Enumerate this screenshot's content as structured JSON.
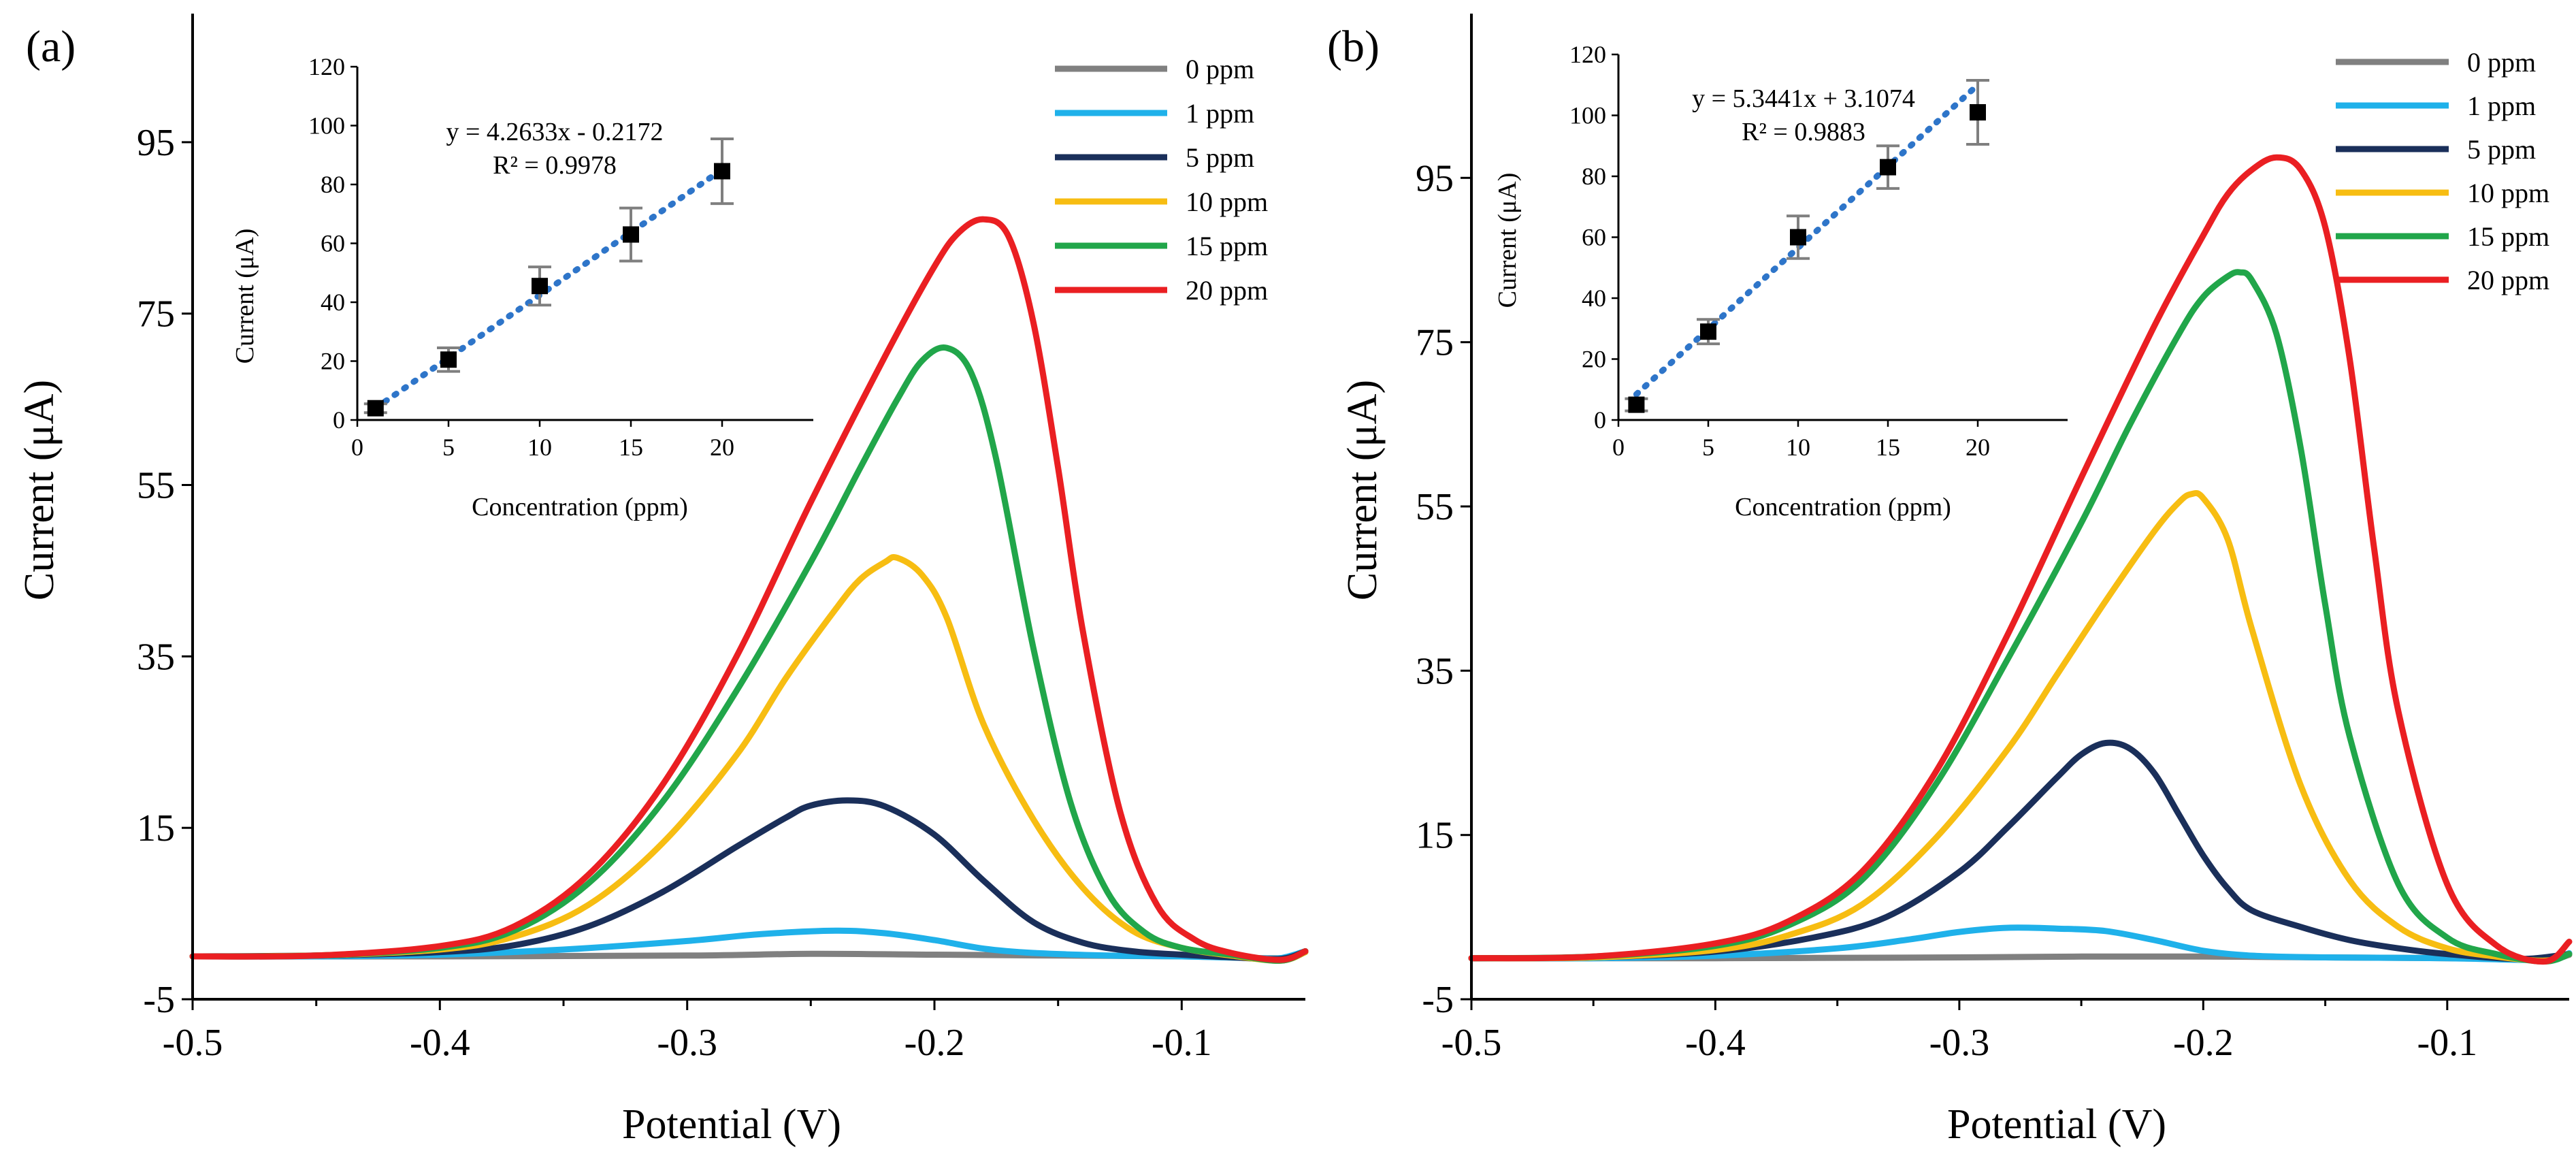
{
  "chart_data": [
    {
      "panel_label": "(a)",
      "type": "line",
      "xlabel": "Potential (V)",
      "ylabel": "Current (μA)",
      "xlim": [
        -0.5,
        -0.05
      ],
      "ylim": [
        -5,
        110
      ],
      "xticks": [
        -0.5,
        -0.4,
        -0.3,
        -0.2,
        -0.1
      ],
      "xtick_labels": [
        "-0.5",
        "-0.4",
        "-0.3",
        "-0.2",
        "-0.1"
      ],
      "yticks": [
        -5,
        15,
        35,
        55,
        75,
        95
      ],
      "ytick_labels": [
        "-5",
        "15",
        "35",
        "55",
        "75",
        "95"
      ],
      "series": [
        {
          "name": "0 ppm",
          "color": "#808080",
          "x": [
            -0.5,
            -0.4,
            -0.3,
            -0.25,
            -0.2,
            -0.15,
            -0.1,
            -0.06,
            -0.05
          ],
          "y": [
            0,
            0,
            0.1,
            0.3,
            0.2,
            0.1,
            0,
            -0.2,
            0.5
          ]
        },
        {
          "name": "1 ppm",
          "color": "#1fb1ea",
          "x": [
            -0.5,
            -0.45,
            -0.4,
            -0.35,
            -0.3,
            -0.27,
            -0.24,
            -0.22,
            -0.2,
            -0.18,
            -0.16,
            -0.13,
            -0.1,
            -0.07,
            -0.06,
            -0.05
          ],
          "y": [
            0,
            0,
            0.2,
            0.8,
            1.8,
            2.6,
            3.0,
            2.7,
            1.9,
            0.9,
            0.4,
            0.1,
            0,
            -0.2,
            -0.2,
            0.6
          ]
        },
        {
          "name": "5 ppm",
          "color": "#1a2f5a",
          "x": [
            -0.5,
            -0.45,
            -0.4,
            -0.37,
            -0.34,
            -0.31,
            -0.28,
            -0.26,
            -0.25,
            -0.235,
            -0.22,
            -0.2,
            -0.18,
            -0.16,
            -0.14,
            -0.12,
            -0.1,
            -0.08,
            -0.06,
            -0.05
          ],
          "y": [
            0,
            0.1,
            0.5,
            1.3,
            3.5,
            7.5,
            12.8,
            16.2,
            17.6,
            18.2,
            17.5,
            14.2,
            8.8,
            4.0,
            1.6,
            0.6,
            0.2,
            -0.1,
            -0.3,
            0.6
          ]
        },
        {
          "name": "10 ppm",
          "color": "#f7bd12",
          "x": [
            -0.5,
            -0.45,
            -0.4,
            -0.37,
            -0.34,
            -0.31,
            -0.28,
            -0.26,
            -0.24,
            -0.23,
            -0.22,
            -0.215,
            -0.205,
            -0.195,
            -0.18,
            -0.16,
            -0.14,
            -0.12,
            -0.1,
            -0.08,
            -0.06,
            -0.05
          ],
          "y": [
            0,
            0.1,
            0.8,
            2.3,
            6.0,
            13.2,
            23.5,
            32.5,
            40.5,
            44.0,
            46.0,
            46.5,
            44.5,
            39.5,
            27.0,
            16.0,
            8.0,
            3.0,
            1.0,
            0.1,
            -0.5,
            0.5
          ]
        },
        {
          "name": "15 ppm",
          "color": "#21a64a",
          "x": [
            -0.5,
            -0.45,
            -0.4,
            -0.37,
            -0.34,
            -0.31,
            -0.28,
            -0.25,
            -0.23,
            -0.215,
            -0.205,
            -0.195,
            -0.185,
            -0.175,
            -0.16,
            -0.145,
            -0.13,
            -0.115,
            -0.1,
            -0.08,
            -0.06,
            -0.05
          ],
          "y": [
            0,
            0.1,
            1.0,
            3.0,
            8.5,
            18.0,
            31.0,
            46.0,
            57.0,
            65.0,
            69.5,
            71.0,
            68.0,
            58.0,
            36.0,
            18.0,
            7.5,
            2.8,
            1.0,
            0.2,
            -0.5,
            0.6
          ]
        },
        {
          "name": "20 ppm",
          "color": "#ea1f22",
          "x": [
            -0.5,
            -0.45,
            -0.4,
            -0.37,
            -0.34,
            -0.31,
            -0.28,
            -0.25,
            -0.22,
            -0.2,
            -0.19,
            -0.18,
            -0.17,
            -0.16,
            -0.15,
            -0.14,
            -0.125,
            -0.11,
            -0.095,
            -0.08,
            -0.06,
            -0.05
          ],
          "y": [
            0,
            0.1,
            1.2,
            3.5,
            9.5,
            20.0,
            35.0,
            53.0,
            70.0,
            80.5,
            84.5,
            86.0,
            84.0,
            74.0,
            57.0,
            38.0,
            17.0,
            6.0,
            2.0,
            0.4,
            -0.4,
            0.6
          ]
        }
      ],
      "inset": {
        "type": "scatter",
        "xlabel": "Concentration (ppm)",
        "ylabel": "Current (μA)",
        "xlim": [
          0,
          25
        ],
        "ylim": [
          0,
          120
        ],
        "xticks": [
          0,
          5,
          10,
          15,
          20
        ],
        "xtick_labels": [
          "0",
          "5",
          "10",
          "15",
          "20"
        ],
        "yticks": [
          0,
          20,
          40,
          60,
          80,
          100,
          120
        ],
        "ytick_labels": [
          "0",
          "20",
          "40",
          "60",
          "80",
          "100",
          "120"
        ],
        "x": [
          1,
          5,
          10,
          15,
          20
        ],
        "y": [
          4.0,
          20.5,
          45.5,
          63.0,
          84.5
        ],
        "error": [
          1.5,
          4.0,
          6.5,
          9.0,
          11.0
        ],
        "equation": "y = 4.2633x - 0.2172",
        "r_squared": "R² = 0.9978",
        "fit": {
          "slope": 4.2633,
          "intercept": -0.2172,
          "x_range": [
            1,
            20
          ]
        }
      }
    },
    {
      "panel_label": "(b)",
      "type": "line",
      "xlabel": "Potential (V)",
      "ylabel": "Current (μA)",
      "xlim": [
        -0.5,
        -0.05
      ],
      "ylim": [
        -5,
        115
      ],
      "xticks": [
        -0.5,
        -0.4,
        -0.3,
        -0.2,
        -0.1
      ],
      "xtick_labels": [
        "-0.5",
        "-0.4",
        "-0.3",
        "-0.2",
        "-0.1"
      ],
      "yticks": [
        -5,
        15,
        35,
        55,
        75,
        95
      ],
      "ytick_labels": [
        "-5",
        "15",
        "35",
        "55",
        "75",
        "95"
      ],
      "series": [
        {
          "name": "0 ppm",
          "color": "#808080",
          "x": [
            -0.5,
            -0.4,
            -0.3,
            -0.25,
            -0.2,
            -0.15,
            -0.1,
            -0.06,
            -0.05
          ],
          "y": [
            0,
            0,
            0.1,
            0.2,
            0.2,
            0.1,
            0,
            -0.1,
            0.4
          ]
        },
        {
          "name": "1 ppm",
          "color": "#1fb1ea",
          "x": [
            -0.5,
            -0.45,
            -0.4,
            -0.35,
            -0.32,
            -0.3,
            -0.28,
            -0.26,
            -0.24,
            -0.22,
            -0.2,
            -0.18,
            -0.15,
            -0.1,
            -0.06,
            -0.05
          ],
          "y": [
            0,
            0,
            0.3,
            1.2,
            2.3,
            3.2,
            3.7,
            3.6,
            3.3,
            2.2,
            0.9,
            0.3,
            0.1,
            0,
            -0.2,
            0.6
          ]
        },
        {
          "name": "5 ppm",
          "color": "#1a2f5a",
          "x": [
            -0.5,
            -0.45,
            -0.4,
            -0.36,
            -0.33,
            -0.3,
            -0.28,
            -0.26,
            -0.25,
            -0.24,
            -0.23,
            -0.22,
            -0.21,
            -0.2,
            -0.19,
            -0.18,
            -0.16,
            -0.14,
            -0.12,
            -0.1,
            -0.07,
            -0.05
          ],
          "y": [
            0,
            0.1,
            0.8,
            2.5,
            5.0,
            10.5,
            16.0,
            22.0,
            24.8,
            26.2,
            25.5,
            22.5,
            17.5,
            12.5,
            8.5,
            5.8,
            3.8,
            2.2,
            1.2,
            0.5,
            -0.1,
            0.5
          ]
        },
        {
          "name": "10 ppm",
          "color": "#f7bd12",
          "x": [
            -0.5,
            -0.45,
            -0.4,
            -0.37,
            -0.34,
            -0.31,
            -0.28,
            -0.26,
            -0.24,
            -0.22,
            -0.21,
            -0.205,
            -0.2,
            -0.19,
            -0.18,
            -0.16,
            -0.14,
            -0.12,
            -0.1,
            -0.08,
            -0.06,
            -0.05
          ],
          "y": [
            0,
            0.1,
            1.0,
            2.8,
            6.5,
            14.5,
            25.5,
            34.5,
            43.5,
            52.0,
            55.5,
            56.5,
            56.0,
            51.0,
            40.0,
            21.0,
            9.5,
            3.8,
            1.2,
            0.2,
            -0.3,
            0.5
          ]
        },
        {
          "name": "15 ppm",
          "color": "#21a64a",
          "x": [
            -0.5,
            -0.45,
            -0.4,
            -0.37,
            -0.34,
            -0.31,
            -0.28,
            -0.25,
            -0.23,
            -0.21,
            -0.2,
            -0.19,
            -0.185,
            -0.18,
            -0.17,
            -0.16,
            -0.15,
            -0.14,
            -0.12,
            -0.1,
            -0.08,
            -0.06,
            -0.05
          ],
          "y": [
            0,
            0.2,
            1.5,
            4.0,
            9.5,
            21.0,
            36.5,
            53.0,
            65.0,
            76.0,
            80.5,
            83.0,
            83.5,
            82.5,
            76.0,
            62.0,
            43.0,
            27.0,
            9.0,
            2.5,
            0.5,
            -0.4,
            0.5
          ]
        },
        {
          "name": "20 ppm",
          "color": "#ea1f22",
          "x": [
            -0.5,
            -0.45,
            -0.4,
            -0.37,
            -0.34,
            -0.31,
            -0.28,
            -0.25,
            -0.22,
            -0.2,
            -0.19,
            -0.18,
            -0.17,
            -0.16,
            -0.15,
            -0.14,
            -0.13,
            -0.12,
            -0.1,
            -0.08,
            -0.06,
            -0.05
          ],
          "y": [
            0,
            0.2,
            1.8,
            4.5,
            10.5,
            22.5,
            39.5,
            58.5,
            77.0,
            88.0,
            93.0,
            96.0,
            97.5,
            96.0,
            89.0,
            73.0,
            50.0,
            30.0,
            9.0,
            1.6,
            -0.4,
            2.0
          ]
        }
      ],
      "inset": {
        "type": "scatter",
        "xlabel": "Concentration (ppm)",
        "ylabel": "Current (μA)",
        "xlim": [
          0,
          25
        ],
        "ylim": [
          0,
          120
        ],
        "xticks": [
          0,
          5,
          10,
          15,
          20
        ],
        "xtick_labels": [
          "0",
          "5",
          "10",
          "15",
          "20"
        ],
        "yticks": [
          0,
          20,
          40,
          60,
          80,
          100,
          120
        ],
        "ytick_labels": [
          "0",
          "20",
          "40",
          "60",
          "80",
          "100",
          "120"
        ],
        "x": [
          1,
          5,
          10,
          15,
          20
        ],
        "y": [
          5.0,
          29.0,
          60.0,
          83.0,
          101.0
        ],
        "error": [
          2.0,
          4.0,
          7.0,
          7.0,
          10.5
        ],
        "equation": "y = 5.3441x + 3.1074",
        "r_squared": "R² = 0.9883",
        "fit": {
          "slope": 5.3441,
          "intercept": 3.1074,
          "x_range": [
            1,
            20
          ]
        }
      }
    }
  ]
}
